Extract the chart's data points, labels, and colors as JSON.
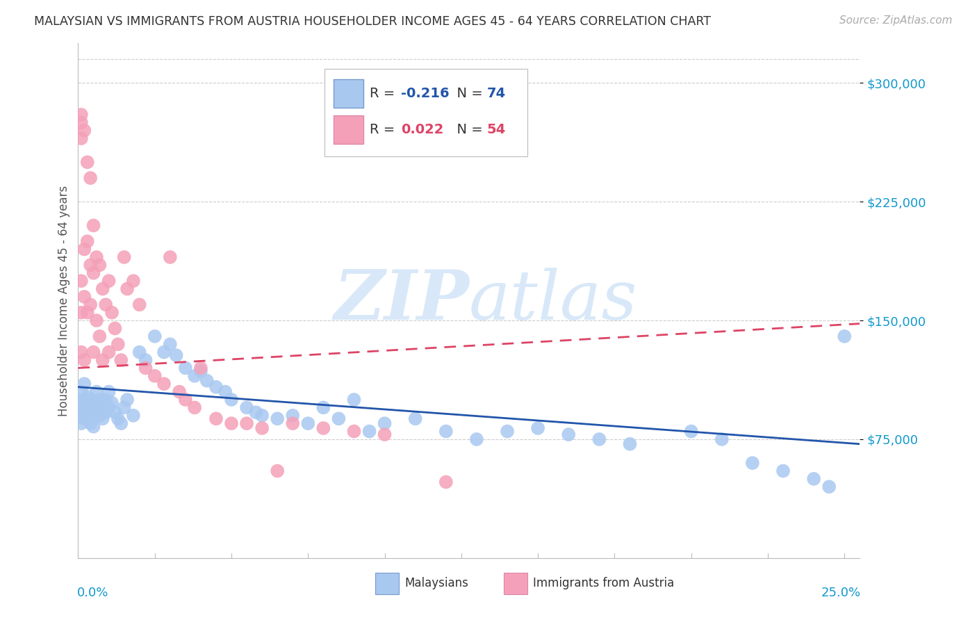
{
  "title": "MALAYSIAN VS IMMIGRANTS FROM AUSTRIA HOUSEHOLDER INCOME AGES 45 - 64 YEARS CORRELATION CHART",
  "source": "Source: ZipAtlas.com",
  "ylabel": "Householder Income Ages 45 - 64 years",
  "ytick_labels": [
    "$75,000",
    "$150,000",
    "$225,000",
    "$300,000"
  ],
  "ytick_values": [
    75000,
    150000,
    225000,
    300000
  ],
  "ylim": [
    0,
    325000
  ],
  "xlim": [
    0.0,
    0.255
  ],
  "blue_color": "#A8C8F0",
  "pink_color": "#F4A0B8",
  "blue_line_color": "#2255AA",
  "pink_line_color": "#DD4466",
  "watermark_color": "#D8E8F8",
  "malaysian_x": [
    0.001,
    0.001,
    0.001,
    0.001,
    0.001,
    0.002,
    0.002,
    0.002,
    0.002,
    0.003,
    0.003,
    0.003,
    0.004,
    0.004,
    0.004,
    0.005,
    0.005,
    0.005,
    0.006,
    0.006,
    0.007,
    0.007,
    0.008,
    0.008,
    0.009,
    0.009,
    0.01,
    0.01,
    0.011,
    0.012,
    0.013,
    0.014,
    0.015,
    0.016,
    0.018,
    0.02,
    0.022,
    0.025,
    0.028,
    0.03,
    0.032,
    0.035,
    0.038,
    0.04,
    0.042,
    0.045,
    0.048,
    0.05,
    0.055,
    0.058,
    0.06,
    0.065,
    0.07,
    0.075,
    0.08,
    0.085,
    0.09,
    0.095,
    0.1,
    0.11,
    0.12,
    0.13,
    0.14,
    0.15,
    0.16,
    0.17,
    0.18,
    0.2,
    0.21,
    0.22,
    0.23,
    0.24,
    0.245,
    0.25
  ],
  "malaysian_y": [
    100000,
    95000,
    90000,
    85000,
    105000,
    98000,
    92000,
    88000,
    110000,
    102000,
    95000,
    88000,
    100000,
    93000,
    85000,
    98000,
    90000,
    83000,
    105000,
    95000,
    100000,
    90000,
    95000,
    88000,
    100000,
    92000,
    105000,
    95000,
    98000,
    92000,
    88000,
    85000,
    95000,
    100000,
    90000,
    130000,
    125000,
    140000,
    130000,
    135000,
    128000,
    120000,
    115000,
    118000,
    112000,
    108000,
    105000,
    100000,
    95000,
    92000,
    90000,
    88000,
    90000,
    85000,
    95000,
    88000,
    100000,
    80000,
    85000,
    88000,
    80000,
    75000,
    80000,
    82000,
    78000,
    75000,
    72000,
    80000,
    75000,
    60000,
    55000,
    50000,
    45000,
    140000
  ],
  "austria_x": [
    0.001,
    0.001,
    0.001,
    0.001,
    0.001,
    0.001,
    0.002,
    0.002,
    0.002,
    0.002,
    0.003,
    0.003,
    0.003,
    0.004,
    0.004,
    0.004,
    0.005,
    0.005,
    0.005,
    0.006,
    0.006,
    0.007,
    0.007,
    0.008,
    0.008,
    0.009,
    0.01,
    0.01,
    0.011,
    0.012,
    0.013,
    0.014,
    0.015,
    0.016,
    0.018,
    0.02,
    0.022,
    0.025,
    0.028,
    0.03,
    0.033,
    0.035,
    0.038,
    0.04,
    0.045,
    0.05,
    0.055,
    0.06,
    0.065,
    0.07,
    0.08,
    0.09,
    0.1,
    0.12
  ],
  "austria_y": [
    280000,
    275000,
    265000,
    175000,
    155000,
    130000,
    270000,
    195000,
    165000,
    125000,
    250000,
    200000,
    155000,
    240000,
    185000,
    160000,
    210000,
    180000,
    130000,
    190000,
    150000,
    185000,
    140000,
    170000,
    125000,
    160000,
    175000,
    130000,
    155000,
    145000,
    135000,
    125000,
    190000,
    170000,
    175000,
    160000,
    120000,
    115000,
    110000,
    190000,
    105000,
    100000,
    95000,
    120000,
    88000,
    85000,
    85000,
    82000,
    55000,
    85000,
    82000,
    80000,
    78000,
    48000
  ],
  "blue_line_x0": 0.0,
  "blue_line_y0": 108000,
  "blue_line_x1": 0.255,
  "blue_line_y1": 72000,
  "pink_line_x0": 0.0,
  "pink_line_y0": 120000,
  "pink_line_x1": 0.255,
  "pink_line_y1": 148000
}
